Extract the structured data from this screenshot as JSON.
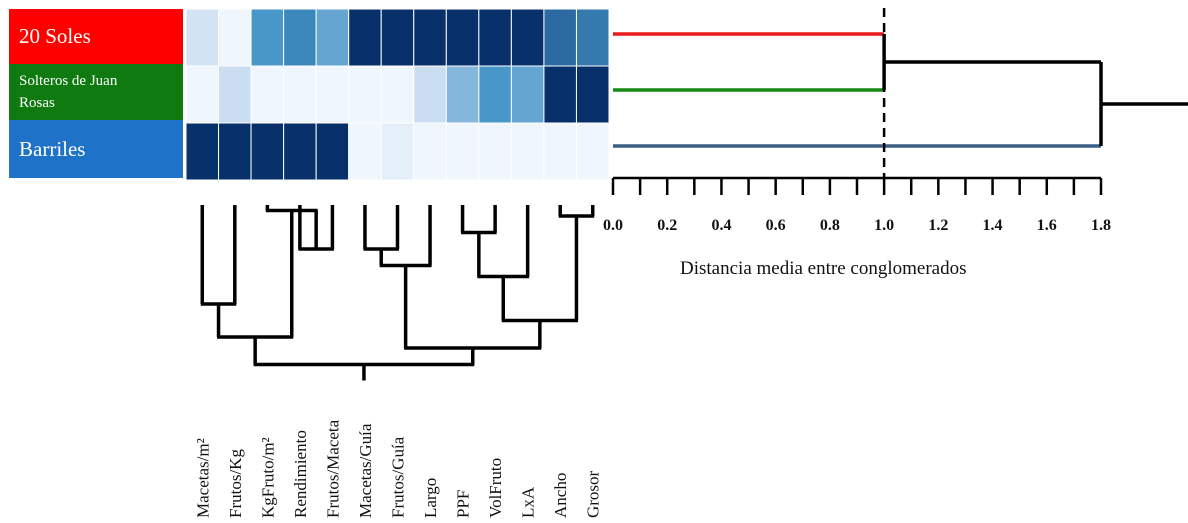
{
  "rows": [
    {
      "label": "20 Soles",
      "color": "#ff0000",
      "line_color": "#e81b1b"
    },
    {
      "label": "Solteros de Juan Rosas",
      "color": "#0f7a0f",
      "line_color": "#138a13"
    },
    {
      "label": "Barriles",
      "color": "#1e73c8",
      "line_color": "#3a5d83"
    }
  ],
  "columns": [
    "Macetas/m²",
    "Frutos/Kg",
    "KgFruto/m²",
    "Rendimiento",
    "Frutos/Maceta",
    "Macetas/Guía",
    "Frutos/Guía",
    "Largo",
    "PPF",
    "VolFruto",
    "LxA",
    "Ancho",
    "Grosor"
  ],
  "chart_data": {
    "type": "heatmap",
    "rows": [
      "20 Soles",
      "Solteros de Juan Rosas",
      "Barriles"
    ],
    "columns": [
      "Macetas/m²",
      "Frutos/Kg",
      "KgFruto/m²",
      "Rendimiento",
      "Frutos/Maceta",
      "Macetas/Guía",
      "Frutos/Guía",
      "Largo",
      "PPF",
      "VolFruto",
      "LxA",
      "Ancho",
      "Grosor"
    ],
    "values": [
      [
        0.25,
        0.05,
        0.65,
        0.7,
        0.58,
        1.0,
        1.0,
        1.0,
        1.0,
        1.0,
        1.0,
        0.8,
        0.75
      ],
      [
        0.05,
        0.3,
        0.05,
        0.05,
        0.05,
        0.05,
        0.05,
        0.3,
        0.5,
        0.65,
        0.58,
        1.0,
        1.0
      ],
      [
        1.0,
        1.0,
        1.0,
        1.0,
        1.0,
        0.05,
        0.12,
        0.05,
        0.05,
        0.05,
        0.05,
        0.05,
        0.05
      ]
    ],
    "color_scale": [
      "#f7fbff",
      "#08306b"
    ],
    "row_dendrogram": {
      "xlabel": "Distancia media entre conglomerados",
      "ticks": [
        "0.0",
        "0.2",
        "0.4",
        "0.6",
        "0.8",
        "1.0",
        "1.2",
        "1.4",
        "1.6",
        "1.8"
      ],
      "xlim": [
        0.0,
        1.8
      ],
      "merges": [
        {
          "members": [
            "20 Soles",
            "Solteros de Juan Rosas"
          ],
          "height": 1.0
        },
        {
          "members": [
            "20 Soles + Solteros de Juan Rosas",
            "Barriles"
          ],
          "height": 1.8
        }
      ],
      "cut_line": 1.0
    },
    "column_dendrogram": {
      "merges": [
        {
          "members": [
            "Macetas/m²",
            "Frutos/Kg"
          ],
          "height": 0.9
        },
        {
          "members": [
            "Rendimiento",
            "Frutos/Maceta"
          ],
          "height": 0.4
        },
        {
          "members": [
            "KgFruto/m²",
            "Rendimiento + Frutos/Maceta"
          ],
          "height": 0.05
        },
        {
          "members": [
            "Macetas/m² + Frutos/Kg",
            "KgFruto/m² group"
          ],
          "height": 1.2
        },
        {
          "members": [
            "Macetas/Guía",
            "Frutos/Guía"
          ],
          "height": 0.4
        },
        {
          "members": [
            "PPF",
            "VolFruto"
          ],
          "height": 0.25
        },
        {
          "members": [
            "PPF + VolFruto",
            "LxA"
          ],
          "height": 0.65
        },
        {
          "members": [
            "Ancho",
            "Grosor"
          ],
          "height": 0.1
        },
        {
          "members": [
            "PPF + VolFruto + LxA",
            "Ancho + Grosor"
          ],
          "height": 1.05
        },
        {
          "members": [
            "Macetas/Guía + Frutos/Guía",
            "Largo"
          ],
          "height": 0.55
        },
        {
          "members": [
            "Macetas/Guía + Frutos/Guía + Largo",
            "PPF ... Grosor"
          ],
          "height": 1.3
        },
        {
          "members": [
            "left group",
            "right group"
          ],
          "height": 1.45
        }
      ]
    }
  }
}
